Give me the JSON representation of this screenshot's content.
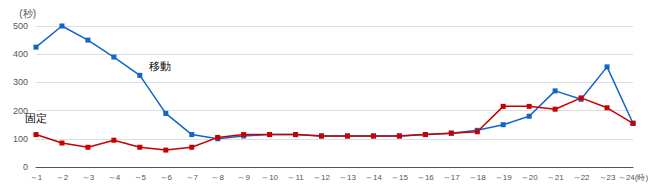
{
  "chart_data": {
    "type": "line",
    "y_label": "(秒)",
    "categories": [
      "～1",
      "～2",
      "～3",
      "～4",
      "～5",
      "～6",
      "～7",
      "～8",
      "～9",
      "～10",
      "～11",
      "～12",
      "～13",
      "～14",
      "～15",
      "～16",
      "～17",
      "～18",
      "～19",
      "～20",
      "～21",
      "～22",
      "～23",
      "～24(時)"
    ],
    "series": [
      {
        "name": "移動",
        "color": "#1464c8",
        "marker": "square",
        "values": [
          425,
          500,
          450,
          390,
          325,
          190,
          115,
          100,
          110,
          115,
          115,
          110,
          110,
          110,
          110,
          115,
          120,
          130,
          150,
          180,
          270,
          240,
          355,
          155
        ]
      },
      {
        "name": "固定",
        "color": "#c80000",
        "marker": "square",
        "values": [
          115,
          85,
          70,
          95,
          70,
          60,
          70,
          105,
          115,
          115,
          115,
          110,
          110,
          110,
          110,
          115,
          120,
          125,
          215,
          215,
          205,
          245,
          210,
          155
        ]
      }
    ],
    "annotations": [
      {
        "text": "移動",
        "series": "移動",
        "x": "～5"
      },
      {
        "text": "固定",
        "series": "固定",
        "x": "～1"
      }
    ],
    "ylim": [
      0,
      500
    ],
    "yticks": [
      0,
      100,
      200,
      300,
      400,
      500
    ],
    "grid": true
  }
}
